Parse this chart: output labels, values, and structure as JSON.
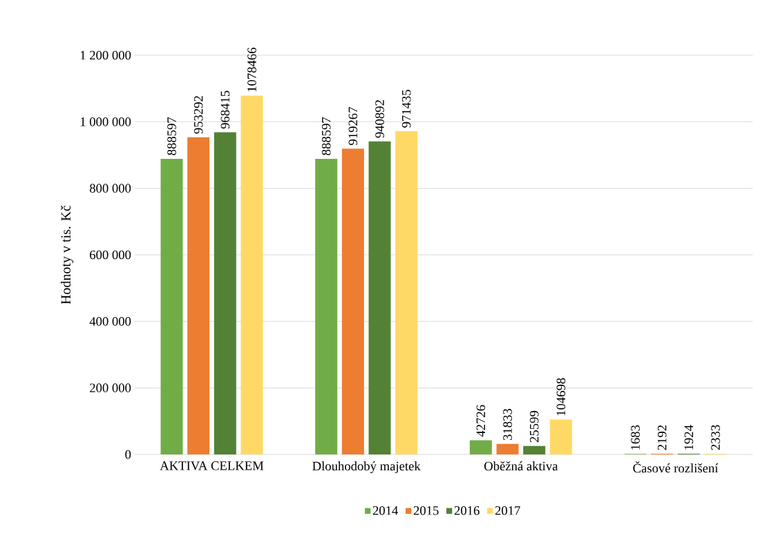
{
  "chart_data": {
    "type": "bar",
    "ylabel": "Hodnoty v tis. Kč",
    "categories": [
      "AKTIVA CELKEM",
      "Dlouhodobý majetek",
      "Oběžná aktiva",
      "Časové rozlišení"
    ],
    "series": [
      {
        "name": "2014",
        "color": "#70ad47",
        "values": [
          888597,
          888597,
          42726,
          1683
        ]
      },
      {
        "name": "2015",
        "color": "#ed7d31",
        "values": [
          953292,
          919267,
          31833,
          2192
        ]
      },
      {
        "name": "2016",
        "color": "#548235",
        "values": [
          968415,
          940892,
          25599,
          1924
        ]
      },
      {
        "name": "2017",
        "color": "#ffd966",
        "values": [
          1078466,
          971435,
          104698,
          2333
        ]
      }
    ],
    "ylim": [
      0,
      1200000
    ],
    "yticks": [
      0,
      {
        "value": 200000,
        "label": "200 000"
      },
      {
        "value": 400000,
        "label": "400 000"
      },
      {
        "value": 600000,
        "label": "600 000"
      },
      {
        "value": 800000,
        "label": "800 000"
      },
      {
        "value": 1000000,
        "label": "1 000 000"
      },
      {
        "value": 1200000,
        "label": "1 200 000"
      }
    ],
    "grid": "y",
    "legend": "bottom",
    "data_labels": true
  }
}
